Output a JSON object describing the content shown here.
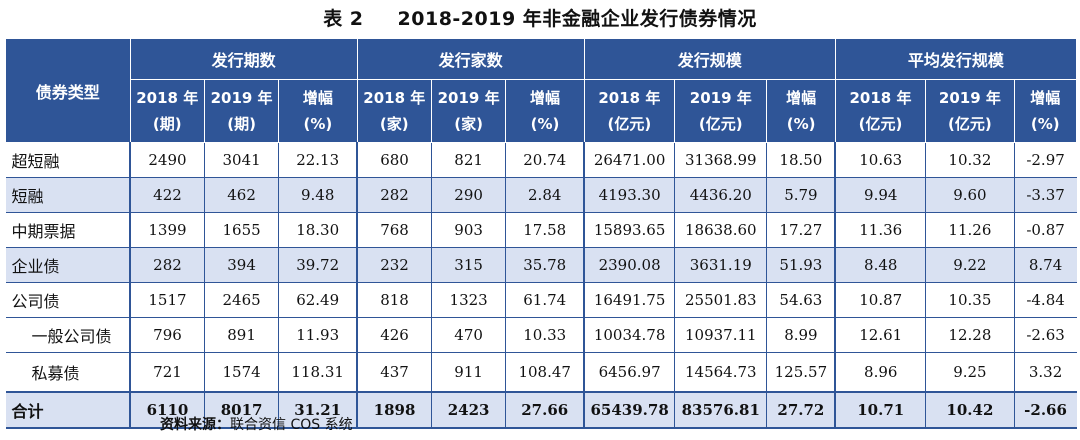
{
  "title": {
    "number": "表 2",
    "text": "2018-2019 年非金融企业发行债券情况"
  },
  "header": {
    "type_label": "债券类型",
    "groups": [
      "发行期数",
      "发行家数",
      "发行规模",
      "平均发行规模"
    ],
    "sub": [
      [
        "2018 年",
        "(期)"
      ],
      [
        "2019 年",
        "(期)"
      ],
      [
        "增幅",
        "(%)"
      ],
      [
        "2018 年",
        "(家)"
      ],
      [
        "2019 年",
        "(家)"
      ],
      [
        "增幅",
        "(%)"
      ],
      [
        "2018 年",
        "(亿元)"
      ],
      [
        "2019 年",
        "(亿元)"
      ],
      [
        "增幅",
        "(%)"
      ],
      [
        "2018 年",
        "(亿元)"
      ],
      [
        "2019 年",
        "(亿元)"
      ],
      [
        "增幅",
        "(%)"
      ]
    ]
  },
  "rows": [
    [
      "超短融",
      "2490",
      "3041",
      "22.13",
      "680",
      "821",
      "20.74",
      "26471.00",
      "31368.99",
      "18.50",
      "10.63",
      "10.32",
      "-2.97"
    ],
    [
      "短融",
      "422",
      "462",
      "9.48",
      "282",
      "290",
      "2.84",
      "4193.30",
      "4436.20",
      "5.79",
      "9.94",
      "9.60",
      "-3.37"
    ],
    [
      "中期票据",
      "1399",
      "1655",
      "18.30",
      "768",
      "903",
      "17.58",
      "15893.65",
      "18638.60",
      "17.27",
      "11.36",
      "11.26",
      "-0.87"
    ],
    [
      "企业债",
      "282",
      "394",
      "39.72",
      "232",
      "315",
      "35.78",
      "2390.08",
      "3631.19",
      "51.93",
      "8.48",
      "9.22",
      "8.74"
    ],
    [
      "公司债",
      "1517",
      "2465",
      "62.49",
      "818",
      "1323",
      "61.74",
      "16491.75",
      "25501.83",
      "54.63",
      "10.87",
      "10.35",
      "-4.84"
    ],
    [
      "一般公司债",
      "796",
      "891",
      "11.93",
      "426",
      "470",
      "10.33",
      "10034.78",
      "10937.11",
      "8.99",
      "12.61",
      "12.28",
      "-2.63"
    ],
    [
      "私募债",
      "721",
      "1574",
      "118.31",
      "437",
      "911",
      "108.47",
      "6456.97",
      "14564.73",
      "125.57",
      "8.96",
      "9.25",
      "3.32"
    ],
    [
      "合计",
      "6110",
      "8017",
      "31.21",
      "1898",
      "2423",
      "27.66",
      "65439.78",
      "83576.81",
      "27.72",
      "10.71",
      "10.42",
      "-2.66"
    ]
  ],
  "source": {
    "label": "资料来源：",
    "text": "联合资信 COS 系统"
  }
}
